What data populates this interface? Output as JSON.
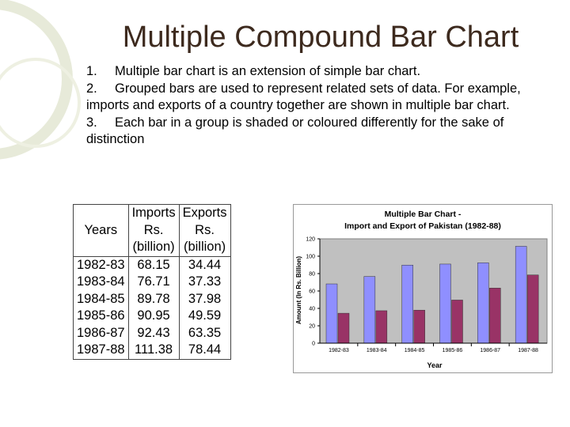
{
  "slide": {
    "title": "Multiple Compound Bar Chart",
    "points": [
      {
        "num": "1.",
        "text": "Multiple bar chart is an extension of simple bar chart."
      },
      {
        "num": "2.",
        "text": "Grouped bars are used to represent related sets of data. For example, imports and exports of a country together are shown in multiple bar chart."
      },
      {
        "num": "3.",
        "text": "Each bar in a group is shaded or coloured differently for the sake of distinction"
      }
    ]
  },
  "table": {
    "headers": {
      "years": "Years",
      "imports": [
        "Imports",
        "Rs.",
        "(billion)"
      ],
      "exports": [
        "Exports",
        "Rs.",
        "(billion)"
      ]
    },
    "years": [
      "1982-83",
      "1983-84",
      "1984-85",
      "1985-86",
      "1986-87",
      "1987-88"
    ],
    "imports": [
      "68.15",
      "76.71",
      "89.78",
      "90.95",
      "92.43",
      "111.38"
    ],
    "exports": [
      "34.44",
      "37.33",
      "37.98",
      "49.59",
      "63.35",
      "78.44"
    ]
  },
  "chart_data": {
    "type": "bar",
    "title": "Multiple Bar Chart - Import and Export of Pakistan (1982-88)",
    "title_lines": [
      "Multiple Bar Chart -",
      "Import and Export of Pakistan (1982-88)"
    ],
    "xlabel": "Year",
    "ylabel": "Amount (In Rs. Billion)",
    "categories": [
      "1982-83",
      "1983-84",
      "1984-85",
      "1985-86",
      "1986-87",
      "1987-88"
    ],
    "series": [
      {
        "values": [
          68.15,
          76.71,
          89.78,
          90.95,
          92.43,
          111.38
        ],
        "color": "#8f8fff"
      },
      {
        "values": [
          34.44,
          37.33,
          37.98,
          49.59,
          63.35,
          78.44
        ],
        "color": "#993366"
      }
    ],
    "ylim": [
      0,
      120
    ],
    "yticks": [
      0,
      20,
      40,
      60,
      80,
      100,
      120
    ],
    "grid": false,
    "plot_background": "#c0c0c0"
  }
}
